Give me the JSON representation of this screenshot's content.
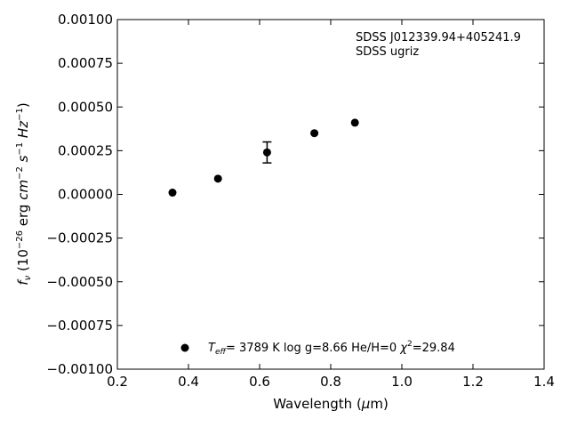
{
  "chart_data": {
    "type": "scatter",
    "title": "",
    "xlabel_pre": "Wavelength (",
    "xlabel_mu": "μ",
    "xlabel_post": "m)",
    "ylabel_f": "f",
    "ylabel_sub": "ν",
    "ylabel_units_pre": " (10",
    "ylabel_exp1": "−26",
    "ylabel_units_mid": " erg ",
    "ylabel_cm": "cm",
    "ylabel_exp2": "−2",
    "ylabel_s": " s",
    "ylabel_exp3": "−1",
    "ylabel_hz": " Hz",
    "ylabel_exp4": "−1",
    "ylabel_close": ")",
    "xlim": [
      0.2,
      1.4
    ],
    "ylim": [
      -0.001,
      0.001
    ],
    "xticks": [
      0.2,
      0.4,
      0.6,
      0.8,
      1.0,
      1.2,
      1.4
    ],
    "xtick_labels": [
      "0.2",
      "0.4",
      "0.6",
      "0.8",
      "1.0",
      "1.2",
      "1.4"
    ],
    "yticks": [
      0.001,
      0.00075,
      0.0005,
      0.00025,
      0.0,
      -0.00025,
      -0.0005,
      -0.00075,
      -0.001
    ],
    "ytick_labels": [
      "0.00100",
      "0.00075",
      "0.00050",
      "0.00025",
      "0.00000",
      "−0.00025",
      "−0.00050",
      "−0.00075",
      "−0.00100"
    ],
    "grid": false,
    "series": [
      {
        "color": "#000000",
        "x": [
          0.355,
          0.483,
          0.621,
          0.754,
          0.868
        ],
        "y": [
          1e-05,
          9e-05,
          0.00024,
          0.00035,
          0.00041
        ],
        "yerr": [
          0,
          0,
          6e-05,
          0,
          0
        ]
      }
    ],
    "annotations": {
      "object_name": "SDSS J012339.94+405241.9",
      "filter_set": "SDSS ugriz"
    },
    "legend": {
      "placement": "lower-center",
      "teff_T": "T",
      "teff_sub": "eff",
      "teff_value": "=  3789 K  log g=8.66  He/H=0  ",
      "chi": "χ",
      "chi_exp": "2",
      "chi_value": "=29.84"
    }
  }
}
